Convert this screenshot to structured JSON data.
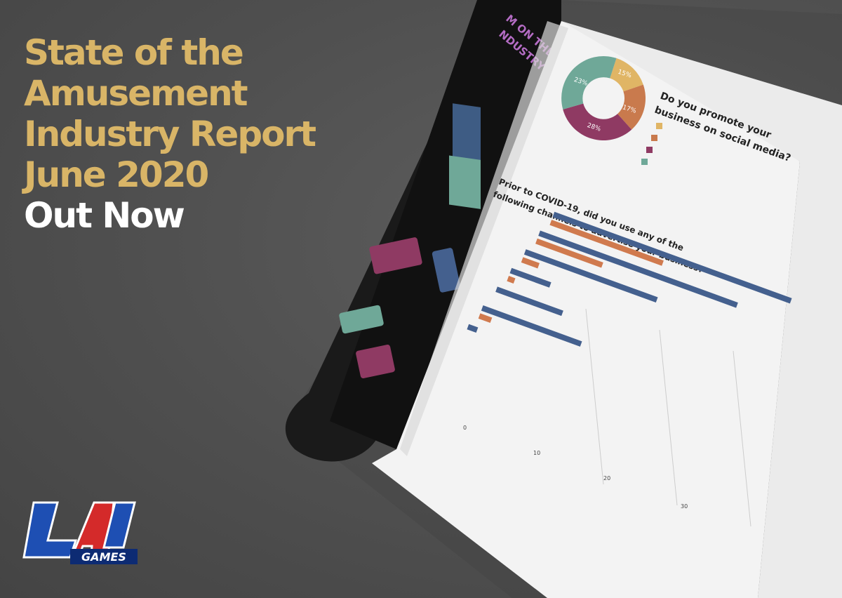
{
  "headline": {
    "line1": "State of the",
    "line2": "Amusement",
    "line3": "Industry Report",
    "line4": "June 2020",
    "line5": "Out Now"
  },
  "colors": {
    "gold": "#d9b567",
    "white": "#ffffff",
    "background": "#555555",
    "donut_yellow": "#e0b565",
    "donut_orange": "#c97a4d",
    "donut_magenta": "#8f3a63",
    "donut_teal": "#6fa898",
    "bar_blue": "#44608e",
    "bar_orange": "#d07a4e"
  },
  "magazine": {
    "left_page": {
      "title_top": "M ON THE",
      "title_bottom": "NDUSTRY"
    },
    "right_page": {
      "donut_title_1": "Do you promote your",
      "donut_title_2": "business on social media?",
      "donut_labels": [
        "15%",
        "17%",
        "28%",
        "23%"
      ],
      "bar_title_1": "Prior to COVID-19, did you use any of the",
      "bar_title_2": "following channels to advertise your business?",
      "axis_ticks": [
        "0",
        "10",
        "20",
        "30"
      ]
    }
  },
  "logo": {
    "mark": "LAI",
    "wordmark": "GAMES"
  }
}
